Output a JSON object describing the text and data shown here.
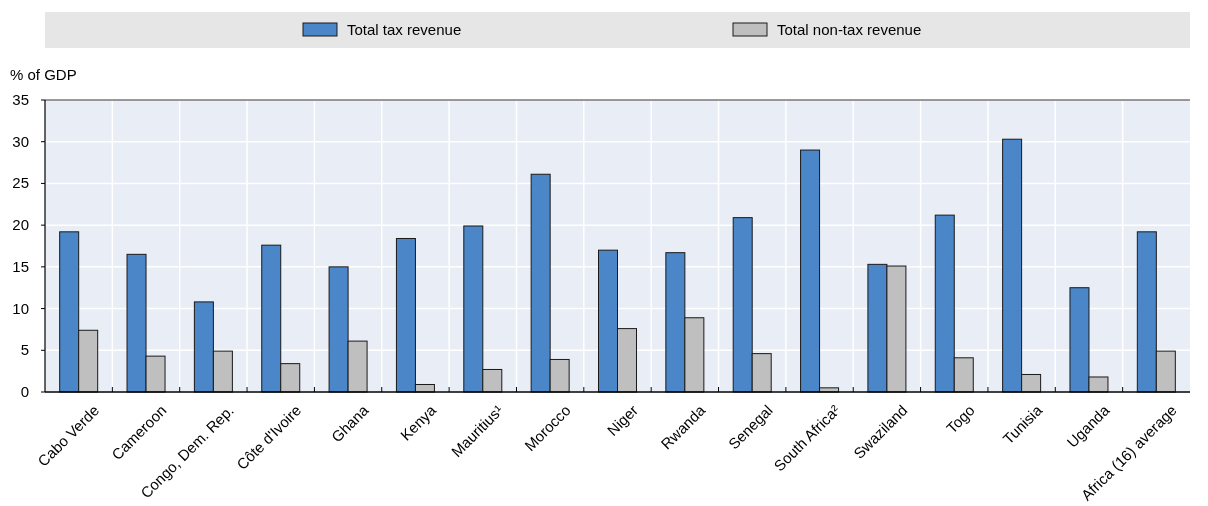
{
  "chart_data": {
    "type": "bar",
    "ylabel": "% of GDP",
    "categories": [
      "Cabo Verde",
      "Cameroon",
      "Congo, Dem. Rep.",
      "Côte d'Ivoire",
      "Ghana",
      "Kenya",
      "Mauritius¹",
      "Morocco",
      "Niger",
      "Rwanda",
      "Senegal",
      "South Africa²",
      "Swaziland",
      "Togo",
      "Tunisia",
      "Uganda",
      "Africa (16) average"
    ],
    "series": [
      {
        "name": "Total tax revenue",
        "color": "#4a86c8",
        "values": [
          19.2,
          16.5,
          10.8,
          17.6,
          15.0,
          18.4,
          19.9,
          26.1,
          17.0,
          16.7,
          20.9,
          29.0,
          15.3,
          21.2,
          30.3,
          12.5,
          19.2
        ]
      },
      {
        "name": "Total non-tax revenue",
        "color": "#bfbfbf",
        "values": [
          7.4,
          4.3,
          4.9,
          3.4,
          6.1,
          0.9,
          2.7,
          3.9,
          7.6,
          8.9,
          4.6,
          0.5,
          15.1,
          4.1,
          2.1,
          1.8,
          4.9
        ]
      }
    ],
    "ylim": [
      0,
      35
    ],
    "yticks": [
      0,
      5,
      10,
      15,
      20,
      25,
      30,
      35
    ],
    "grid": true,
    "legend": "top"
  }
}
